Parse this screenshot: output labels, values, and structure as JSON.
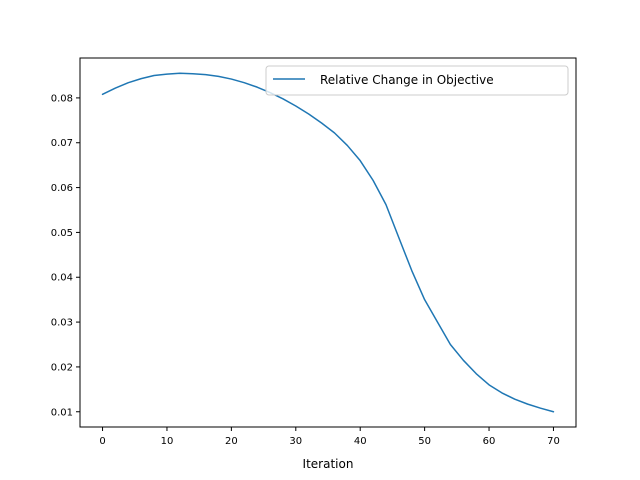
{
  "chart_data": {
    "type": "line",
    "title": "",
    "xlabel": "Iteration",
    "ylabel": "",
    "xlim": [
      -3.5,
      73.5
    ],
    "ylim": [
      0.0066,
      0.0889
    ],
    "xticks": [
      0,
      10,
      20,
      30,
      40,
      50,
      60,
      70
    ],
    "xtick_labels": [
      "0",
      "10",
      "20",
      "30",
      "40",
      "50",
      "60",
      "70"
    ],
    "yticks": [
      0.01,
      0.02,
      0.03,
      0.04,
      0.05,
      0.06,
      0.07,
      0.08
    ],
    "ytick_labels": [
      "0.01",
      "0.02",
      "0.03",
      "0.04",
      "0.05",
      "0.06",
      "0.07",
      "0.08"
    ],
    "grid": false,
    "legend_position": "top-right",
    "series": [
      {
        "name": "Relative Change in Objective",
        "color": "#1f77b4",
        "x": [
          0,
          2,
          4,
          6,
          8,
          10,
          12,
          14,
          16,
          18,
          20,
          22,
          24,
          26,
          28,
          30,
          32,
          34,
          36,
          38,
          40,
          42,
          44,
          46,
          48,
          50,
          52,
          54,
          56,
          58,
          60,
          62,
          64,
          66,
          68,
          70
        ],
        "values": [
          0.0808,
          0.0822,
          0.0834,
          0.0843,
          0.085,
          0.0853,
          0.0855,
          0.0854,
          0.0852,
          0.0848,
          0.0842,
          0.0834,
          0.0824,
          0.0812,
          0.0798,
          0.0782,
          0.0764,
          0.0744,
          0.0722,
          0.0694,
          0.066,
          0.0616,
          0.0562,
          0.0488,
          0.0415,
          0.035,
          0.03,
          0.025,
          0.0215,
          0.0185,
          0.016,
          0.0142,
          0.0128,
          0.0117,
          0.0108,
          0.01
        ]
      }
    ]
  }
}
